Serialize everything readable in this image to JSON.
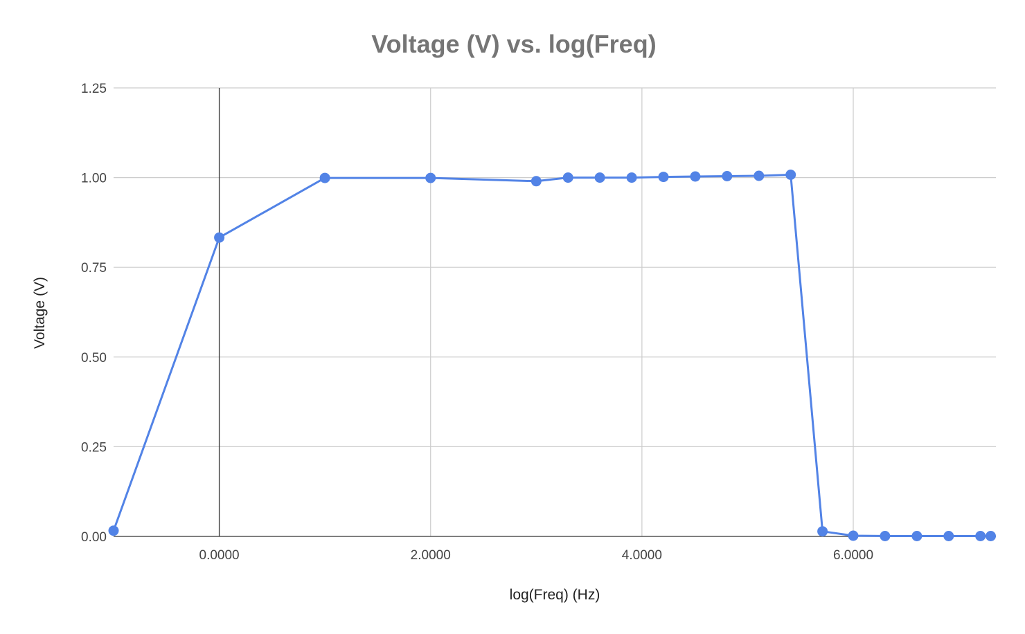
{
  "chart_data": {
    "type": "line",
    "title": "Voltage (V) vs. log(Freq)",
    "xlabel": "log(Freq) (Hz)",
    "ylabel": "Voltage (V)",
    "xlim": [
      -1.0,
      7.35
    ],
    "ylim": [
      0,
      1.25
    ],
    "x_ticks": [
      0,
      2,
      4,
      6
    ],
    "x_tick_labels": [
      "0.0000",
      "2.0000",
      "4.0000",
      "6.0000"
    ],
    "y_ticks": [
      0,
      0.25,
      0.5,
      0.75,
      1.0,
      1.25
    ],
    "y_tick_labels": [
      "0.00",
      "0.25",
      "0.50",
      "0.75",
      "1.00",
      "1.25"
    ],
    "grid": true,
    "legend": "none",
    "series": [
      {
        "color": "#5283e6",
        "marker": "circle",
        "points": [
          {
            "x": -1.0,
            "y": 0.016
          },
          {
            "x": 0.0,
            "y": 0.833
          },
          {
            "x": 1.0,
            "y": 0.999
          },
          {
            "x": 2.0,
            "y": 0.999
          },
          {
            "x": 3.0,
            "y": 0.99
          },
          {
            "x": 3.301,
            "y": 1.0
          },
          {
            "x": 3.602,
            "y": 1.0
          },
          {
            "x": 3.903,
            "y": 1.0
          },
          {
            "x": 4.204,
            "y": 1.002
          },
          {
            "x": 4.505,
            "y": 1.003
          },
          {
            "x": 4.806,
            "y": 1.004
          },
          {
            "x": 5.107,
            "y": 1.005
          },
          {
            "x": 5.408,
            "y": 1.008
          },
          {
            "x": 5.709,
            "y": 0.014
          },
          {
            "x": 6.0,
            "y": 0.002
          },
          {
            "x": 6.301,
            "y": 0.001
          },
          {
            "x": 6.602,
            "y": 0.001
          },
          {
            "x": 6.903,
            "y": 0.001
          },
          {
            "x": 7.204,
            "y": 0.001
          },
          {
            "x": 7.301,
            "y": 0.001
          }
        ]
      }
    ]
  }
}
